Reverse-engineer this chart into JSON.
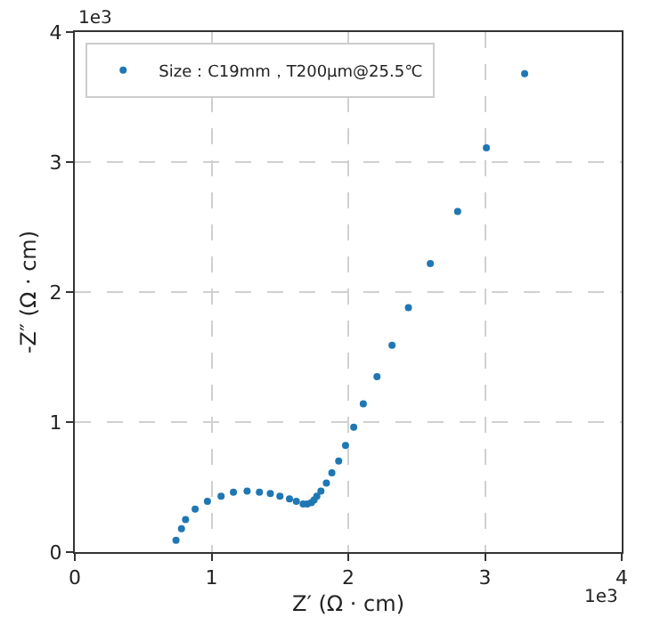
{
  "chart_data": {
    "type": "scatter",
    "xlabel": "Z′ (Ω · cm)",
    "ylabel": "-Z″ (Ω · cm)",
    "annotations": [
      "1e3",
      "1e3"
    ],
    "series": [
      {
        "name": "Size：C19mm，T200μm@25.5℃",
        "color": "#1f77b4",
        "x": [
          0.74,
          0.78,
          0.81,
          0.88,
          0.97,
          1.07,
          1.16,
          1.26,
          1.35,
          1.43,
          1.5,
          1.57,
          1.62,
          1.67,
          1.7,
          1.73,
          1.75,
          1.77,
          1.8,
          1.84,
          1.88,
          1.93,
          1.98,
          2.04,
          2.11,
          2.21,
          2.32,
          2.44,
          2.6,
          2.8,
          3.01,
          3.29
        ],
        "values": [
          0.09,
          0.18,
          0.25,
          0.33,
          0.39,
          0.43,
          0.46,
          0.47,
          0.46,
          0.45,
          0.43,
          0.41,
          0.39,
          0.37,
          0.37,
          0.38,
          0.4,
          0.43,
          0.47,
          0.53,
          0.61,
          0.7,
          0.82,
          0.96,
          1.14,
          1.35,
          1.59,
          1.88,
          2.22,
          2.62,
          3.11,
          3.68
        ]
      }
    ],
    "xlim": [
      0,
      4
    ],
    "ylim": [
      0,
      4
    ],
    "xticks": [
      0,
      1,
      2,
      3,
      4
    ],
    "yticks": [
      0,
      1,
      2,
      3,
      4
    ],
    "grid": true,
    "legend": "top left",
    "marker": "circle"
  }
}
